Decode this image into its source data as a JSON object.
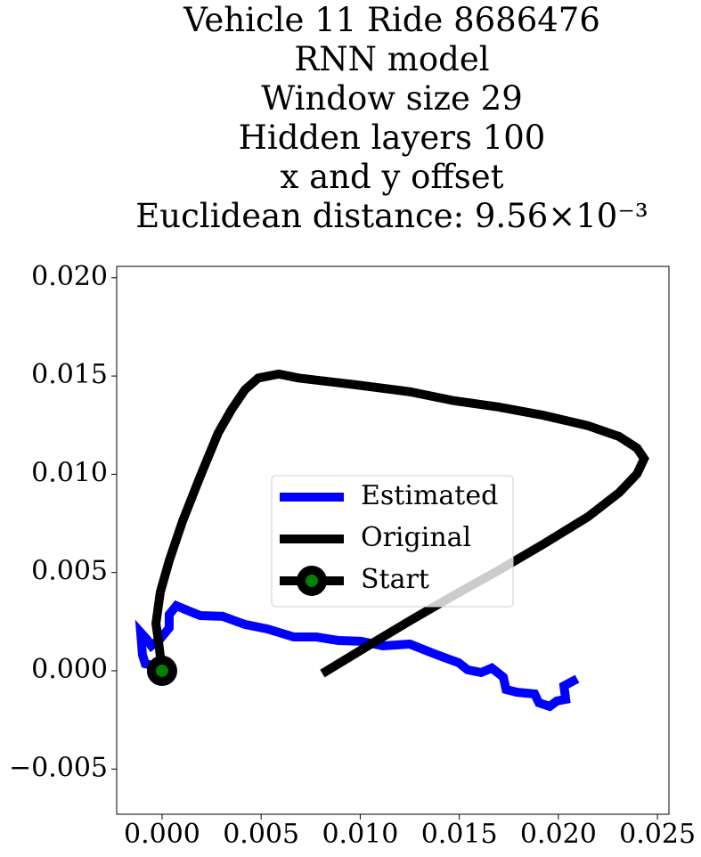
{
  "chart_data": {
    "type": "line",
    "title": [
      "Vehicle 11 Ride 8686476",
      "RNN model",
      "Window size 29",
      "Hidden layers 100",
      "x and y offset",
      "Euclidean distance: 9.56×10⁻³"
    ],
    "series": [
      {
        "name": "Estimated",
        "color": "#0000ff",
        "x": [
          0,
          -0.00031,
          -0.00085,
          -0.00099,
          -0.00108,
          -0.00076,
          -0.00054,
          -9e-05,
          0.00036,
          0.00036,
          0.00072,
          0.00126,
          0.00193,
          0.00306,
          0.00418,
          0.00531,
          0.00665,
          0.00778,
          0.0089,
          0.01003,
          0.01115,
          0.0125,
          0.01385,
          0.01497,
          0.01542,
          0.0161,
          0.01664,
          0.01722,
          0.01736,
          0.0179,
          0.0188,
          0.01902,
          0.01956,
          0.01992,
          0.02037,
          0.02028,
          0.02095
        ],
        "y": [
          0,
          0.00023,
          0.00036,
          0.00082,
          0.00195,
          0.00159,
          0.00127,
          0.00163,
          0.00218,
          0.00286,
          0.00331,
          0.00308,
          0.00281,
          0.00277,
          0.00236,
          0.00213,
          0.00172,
          0.00172,
          0.00154,
          0.0015,
          0.00127,
          0.00136,
          0.00082,
          0.00041,
          5e-05,
          -9e-05,
          0.00014,
          -0.00032,
          -0.00095,
          -0.00109,
          -0.00118,
          -0.00163,
          -0.00181,
          -0.00154,
          -0.00145,
          -0.00077,
          -0.00041
        ]
      },
      {
        "name": "Original",
        "color": "#000000",
        "x": [
          0,
          -0.00018,
          -0.00031,
          -9e-05,
          0.00036,
          0.00103,
          0.00193,
          0.00283,
          0.00351,
          0.00418,
          0.00486,
          0.00589,
          0.00688,
          0.0098,
          0.0125,
          0.01475,
          0.017,
          0.01924,
          0.0215,
          0.02307,
          0.02397,
          0.02433,
          0.02397,
          0.02307,
          0.0215,
          0.01924,
          0.017,
          0.01475,
          0.0125,
          0.01025,
          0.00809
        ],
        "y": [
          0,
          0.0015,
          0.0024,
          0.004,
          0.0056,
          0.0076,
          0.0099,
          0.0121,
          0.0133,
          0.0143,
          0.0149,
          0.0151,
          0.0149,
          0.01455,
          0.0142,
          0.01374,
          0.01342,
          0.013,
          0.01247,
          0.01192,
          0.01133,
          0.01079,
          0.01002,
          0.00907,
          0.00784,
          0.00644,
          0.00512,
          0.00385,
          0.00254,
          0.00118,
          -0.00014
        ]
      },
      {
        "name": "Start",
        "color": "#000000",
        "marker_color": "#008000",
        "x": [
          0
        ],
        "y": [
          0
        ]
      }
    ],
    "xlim": [
      -0.00229,
      0.02558
    ],
    "ylim": [
      -0.0073,
      0.02058
    ],
    "xticks": [
      {
        "value": 0,
        "label": "0.000"
      },
      {
        "value": 0.005,
        "label": "0.005"
      },
      {
        "value": 0.01,
        "label": "0.010"
      },
      {
        "value": 0.015,
        "label": "0.015"
      },
      {
        "value": 0.02,
        "label": "0.020"
      },
      {
        "value": 0.025,
        "label": "0.025"
      }
    ],
    "yticks": [
      {
        "value": -0.005,
        "label": "−0.005"
      },
      {
        "value": 0,
        "label": "0.000"
      },
      {
        "value": 0.005,
        "label": "0.005"
      },
      {
        "value": 0.01,
        "label": "0.010"
      },
      {
        "value": 0.015,
        "label": "0.015"
      },
      {
        "value": 0.02,
        "label": "0.020"
      }
    ]
  }
}
